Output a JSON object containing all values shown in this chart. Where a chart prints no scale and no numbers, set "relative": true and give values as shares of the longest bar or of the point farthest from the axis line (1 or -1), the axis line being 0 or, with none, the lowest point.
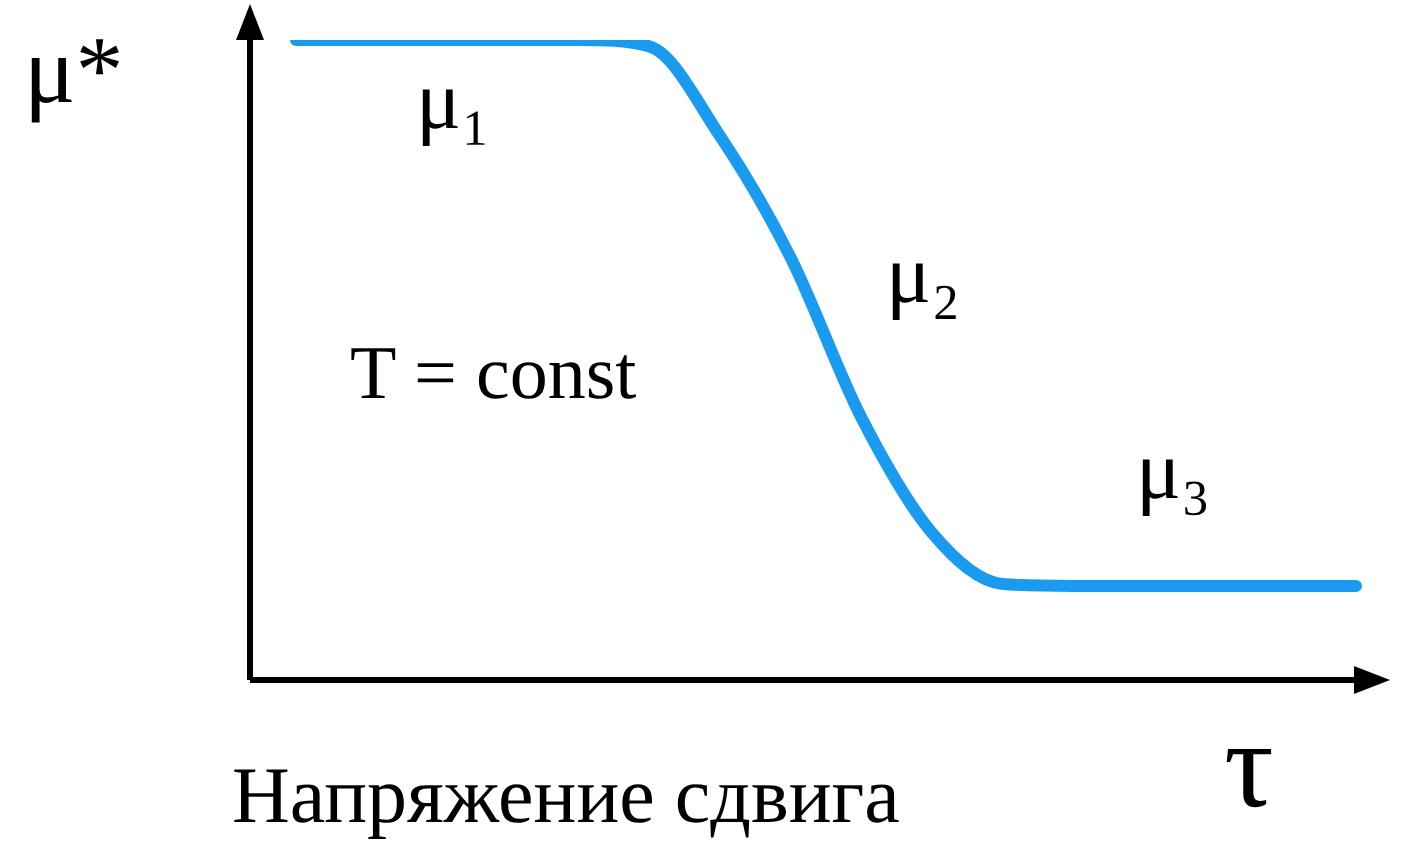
{
  "chart_data": {
    "type": "line",
    "relative": true,
    "ylabel": "μ*",
    "xlabel": "Напряжение сдвига",
    "annotations": [
      "μ₁",
      "μ₂",
      "μ₃",
      "T = const",
      "τ"
    ],
    "categories": [
      null,
      null,
      null,
      null,
      null,
      null,
      null,
      null,
      null,
      null,
      null,
      null,
      null,
      null,
      null,
      null
    ],
    "series": [
      {
        "color": "#1a9bf0",
        "values": [
          1,
          1,
          1,
          1,
          1,
          0.99,
          0.85,
          0.66,
          0.41,
          0.23,
          0.15,
          0.147,
          0.147,
          0.147,
          0.147,
          0.147
        ]
      }
    ],
    "legend": false,
    "marker": "none",
    "line_style": "solid"
  }
}
